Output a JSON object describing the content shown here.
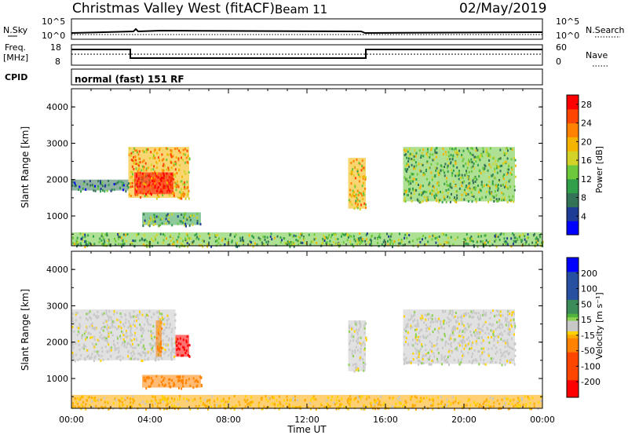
{
  "header": {
    "station": "Christmas Valley West (fitACF)",
    "beam": "Beam 11",
    "date": "02/May/2019"
  },
  "panels": {
    "nsky_label": "N.Sky",
    "nsearch_label": "N.Search",
    "noise_ticks": [
      "10^5",
      "10^0"
    ],
    "freq_label_1": "Freq.",
    "freq_label_2": "[MHz]",
    "freq_ticks": [
      "18",
      "8"
    ],
    "nave_label": "Nave",
    "nave_ticks": [
      "60",
      "0"
    ],
    "cpid_label": "CPID",
    "cpid_text": "normal (fast) 151 RF"
  },
  "colors": {
    "power": [
      "#0000ff",
      "#1e3c96",
      "#347356",
      "#32a04a",
      "#6ec83c",
      "#d2d228",
      "#f5b400",
      "#ff8200",
      "#ff4600",
      "#ff0000"
    ],
    "velocity_neg": [
      "#ff0000",
      "#ff4600",
      "#ff8200",
      "#ffaa00",
      "#ffd200"
    ],
    "velocity_mid": "#c8c8c8",
    "velocity_pos": [
      "#8cd250",
      "#50b43c",
      "#3c8c5a",
      "#2850a0",
      "#0000ff"
    ]
  },
  "chart_data": [
    {
      "type": "heatmap",
      "title": "Power",
      "xlabel": "Time UT",
      "ylabel": "Slant Range [km]",
      "x_ticks": [
        "00:00",
        "04:00",
        "08:00",
        "12:00",
        "16:00",
        "20:00",
        "00:00"
      ],
      "y_ticks": [
        "1000",
        "2000",
        "3000",
        "4000"
      ],
      "ylim": [
        180,
        4500
      ],
      "colorbar_label": "Power [dB]",
      "colorbar_ticks": [
        "4",
        "8",
        "12",
        "16",
        "20",
        "24",
        "28"
      ],
      "colorbar_range": [
        0,
        30
      ],
      "regions": [
        {
          "t0": 2.9,
          "t1": 6.0,
          "r0": 1500,
          "r1": 2900,
          "value": 20
        },
        {
          "t0": 3.2,
          "t1": 5.2,
          "r0": 1600,
          "r1": 2200,
          "value": 27
        },
        {
          "t0": 0.0,
          "t1": 2.9,
          "r0": 1700,
          "r1": 2000,
          "value": 7
        },
        {
          "t0": 3.6,
          "t1": 6.6,
          "r0": 750,
          "r1": 1100,
          "value": 11
        },
        {
          "t0": 14.1,
          "t1": 15.0,
          "r0": 1200,
          "r1": 2600,
          "value": 18
        },
        {
          "t0": 16.9,
          "t1": 22.6,
          "r0": 1400,
          "r1": 2900,
          "value": 13
        },
        {
          "t0": 0.0,
          "t1": 24.0,
          "r0": 180,
          "r1": 550,
          "value": 12
        }
      ]
    },
    {
      "type": "heatmap",
      "title": "Velocity",
      "xlabel": "Time UT",
      "ylabel": "Slant Range [km]",
      "x_ticks": [
        "00:00",
        "04:00",
        "08:00",
        "12:00",
        "16:00",
        "20:00",
        "00:00"
      ],
      "y_ticks": [
        "1000",
        "2000",
        "3000",
        "4000"
      ],
      "ylim": [
        180,
        4500
      ],
      "colorbar_label": "Velocity [m s⁻¹]",
      "colorbar_ticks": [
        "-200",
        "-100",
        "-50",
        "-15",
        "15",
        "50",
        "100",
        "200"
      ],
      "colorbar_range": [
        -250,
        250
      ],
      "regions": [
        {
          "t0": 0.0,
          "t1": 5.3,
          "r0": 1500,
          "r1": 2900,
          "value": 0
        },
        {
          "t0": 4.3,
          "t1": 4.6,
          "r0": 1600,
          "r1": 2600,
          "value": -60
        },
        {
          "t0": 5.3,
          "t1": 6.0,
          "r0": 1600,
          "r1": 2200,
          "value": -230
        },
        {
          "t0": 3.6,
          "t1": 6.6,
          "r0": 750,
          "r1": 1100,
          "value": -80
        },
        {
          "t0": 14.1,
          "t1": 15.0,
          "r0": 1200,
          "r1": 2600,
          "value": 0
        },
        {
          "t0": 16.9,
          "t1": 22.6,
          "r0": 1400,
          "r1": 2900,
          "value": 0
        },
        {
          "t0": 0.0,
          "t1": 24.0,
          "r0": 180,
          "r1": 550,
          "value": -30
        }
      ]
    }
  ]
}
